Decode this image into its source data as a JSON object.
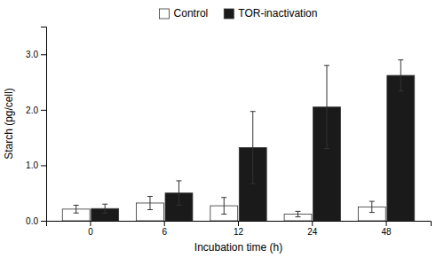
{
  "chart_data": {
    "type": "bar",
    "x_label": "Incubation time (h)",
    "y_label": "Starch (pg/cell)",
    "categories": [
      "0",
      "6",
      "12",
      "24",
      "48"
    ],
    "series": [
      {
        "name": "Control",
        "color": "#ffffff",
        "values": [
          0.21,
          0.32,
          0.27,
          0.12,
          0.25
        ],
        "errors": [
          0.07,
          0.12,
          0.15,
          0.05,
          0.1
        ]
      },
      {
        "name": "TOR-inactivation",
        "color": "#1a1a1a",
        "values": [
          0.22,
          0.5,
          1.32,
          2.05,
          2.62
        ],
        "errors": [
          0.08,
          0.22,
          0.65,
          0.75,
          0.28
        ]
      }
    ],
    "ylim": [
      0,
      3.5
    ],
    "yticks": [
      {
        "value": 0,
        "label": "0.0"
      },
      {
        "value": 1,
        "label": "1.0"
      },
      {
        "value": 2,
        "label": "2.0"
      },
      {
        "value": 3,
        "label": "3.0"
      }
    ],
    "grid": false,
    "legend": "top"
  }
}
